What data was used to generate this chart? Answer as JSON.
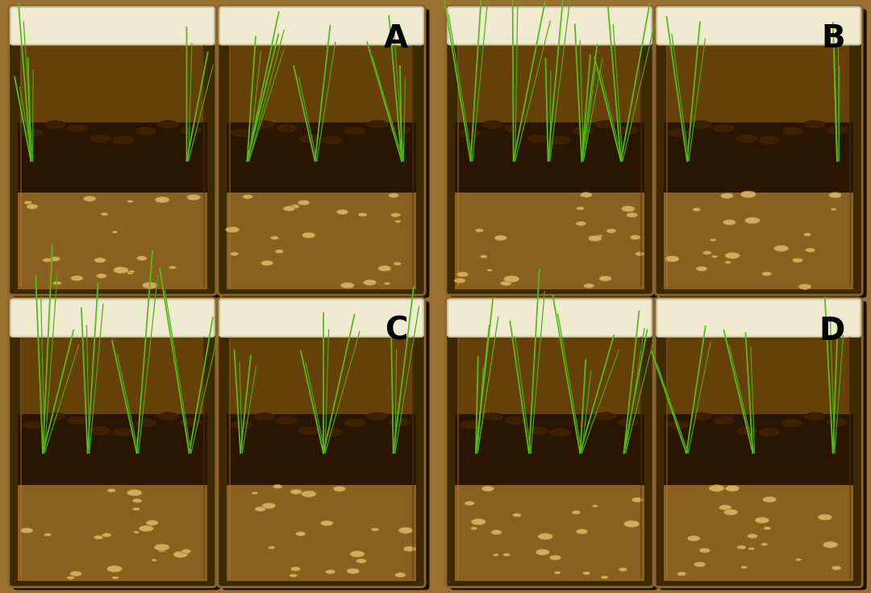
{
  "figure_width": 10.8,
  "figure_height": 7.36,
  "dpi": 100,
  "outer_bg": "#9a7030",
  "labels": [
    "A",
    "B",
    "C",
    "D"
  ],
  "label_fontsize": 28,
  "label_color": "black",
  "label_fontweight": "bold"
}
